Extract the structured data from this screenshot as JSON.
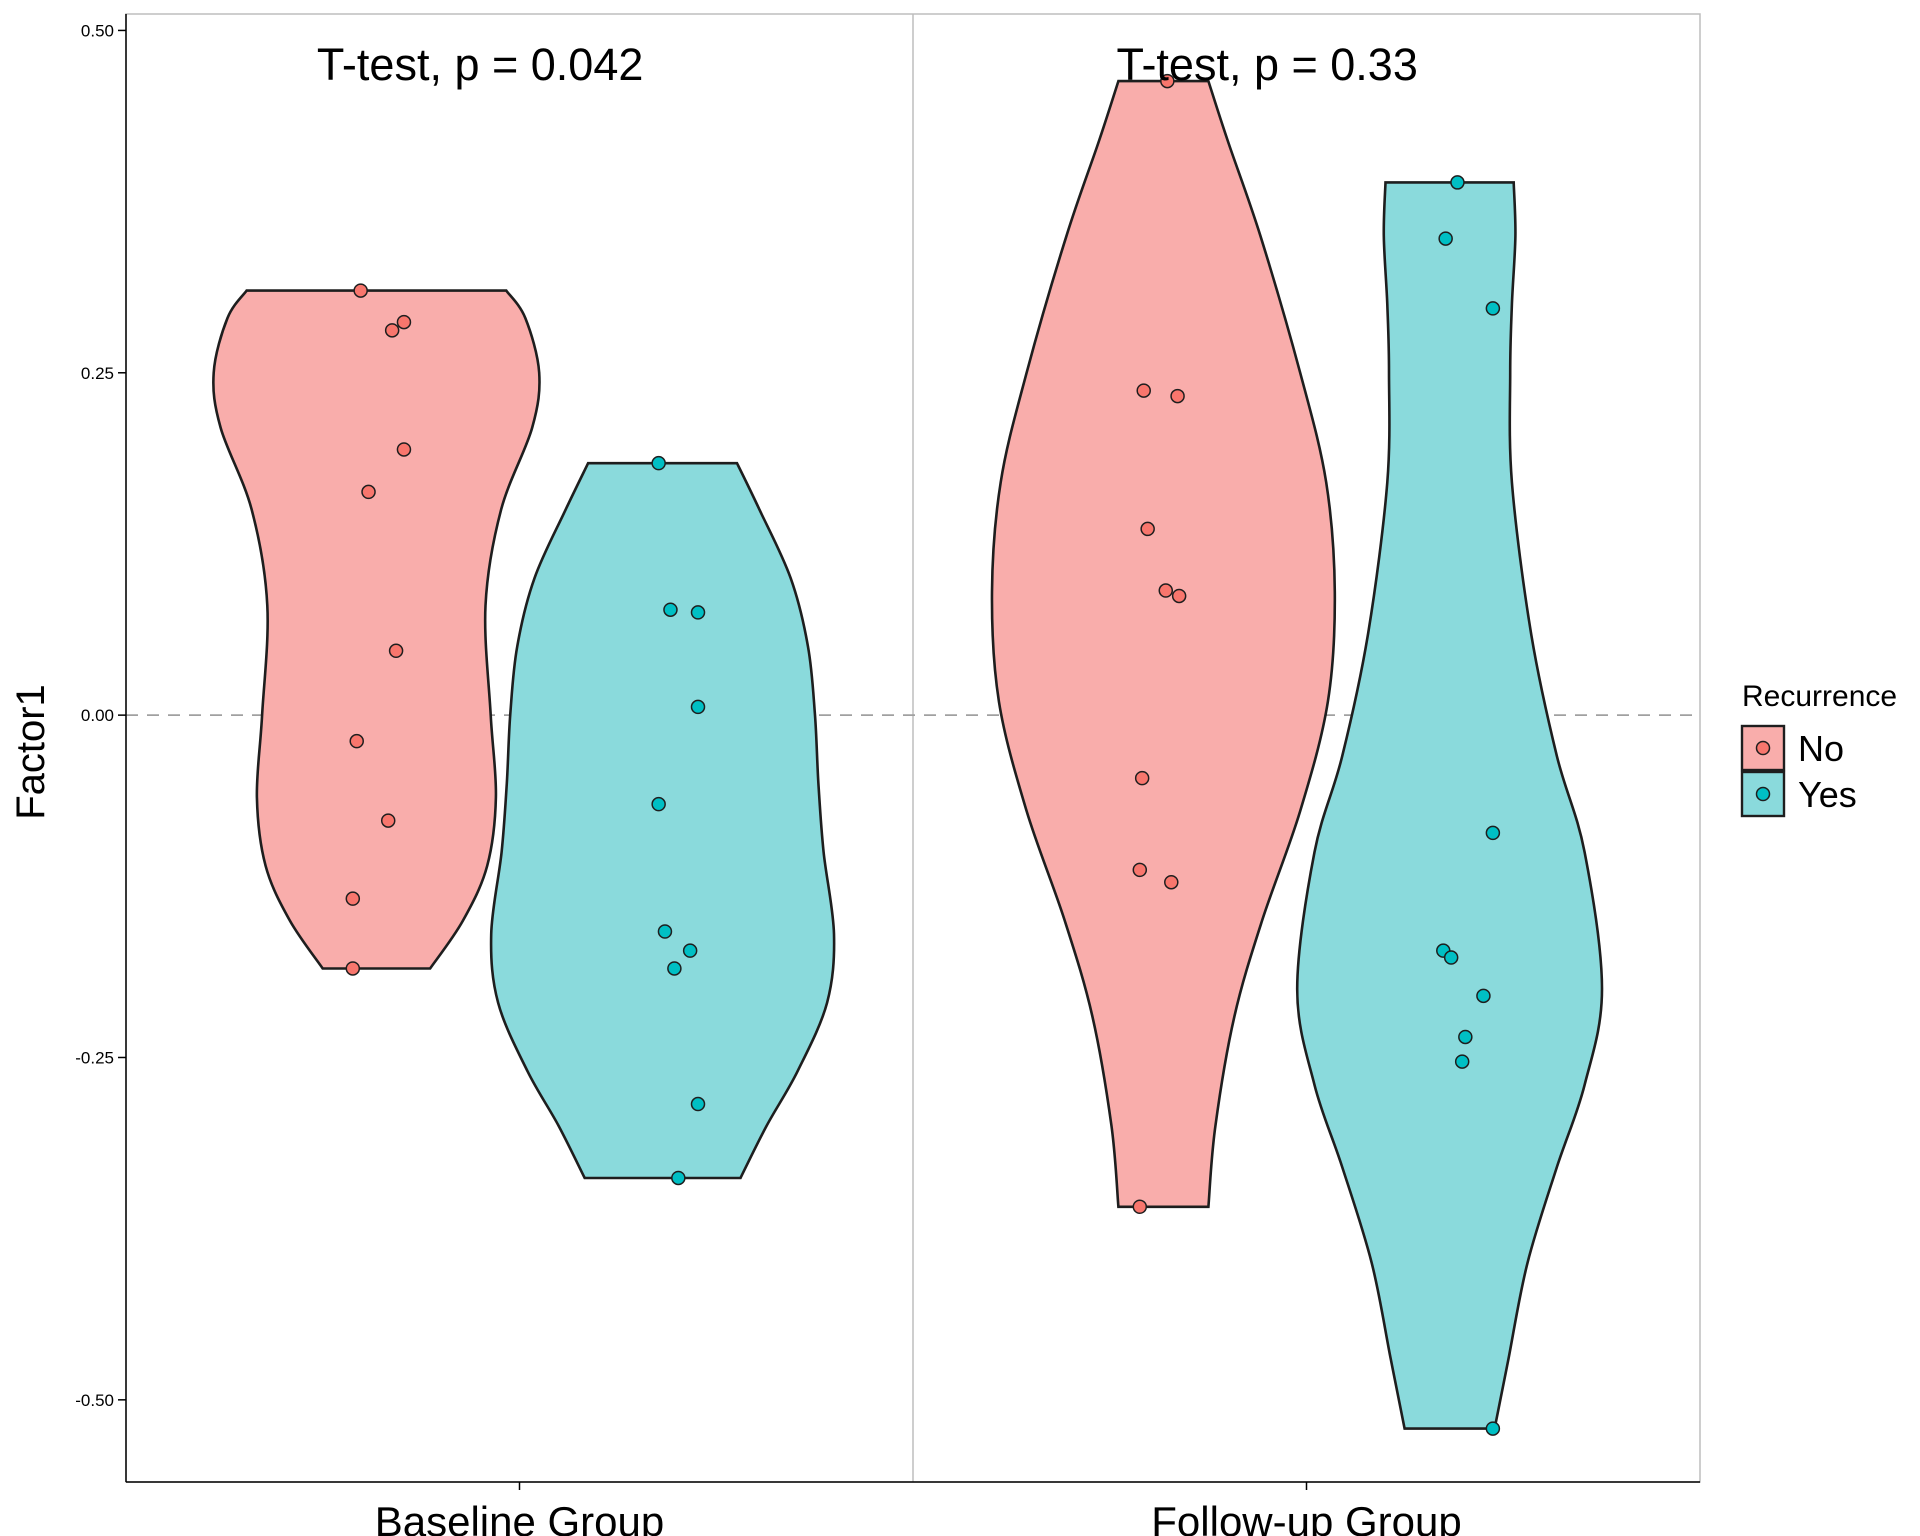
{
  "chart_data": {
    "type": "violin",
    "ylabel": "Factor1",
    "xlabel": "",
    "ylim": [
      -0.56,
      0.512
    ],
    "yticks": [
      -0.5,
      -0.25,
      0.0,
      0.25,
      0.5
    ],
    "ytick_labels": [
      "-0.50",
      "-0.25",
      "0.00",
      "0.25",
      "0.50"
    ],
    "reference_line": 0.0,
    "grid": false,
    "legend": {
      "title": "Recurrence",
      "placement": "right",
      "entries": [
        {
          "label": "No",
          "fill": "#F8766D"
        },
        {
          "label": "Yes",
          "fill": "#00BFC4"
        }
      ]
    },
    "panels": [
      {
        "category": "Baseline Group",
        "annotation": "T-test, p = 0.042",
        "groups": [
          {
            "name": "No",
            "color": "#F8766D",
            "points": [
              {
                "offset": -0.02,
                "y": 0.31
              },
              {
                "offset": 0.02,
                "y": 0.281
              },
              {
                "offset": 0.035,
                "y": 0.287
              },
              {
                "offset": 0.035,
                "y": 0.194
              },
              {
                "offset": -0.01,
                "y": 0.163
              },
              {
                "offset": 0.025,
                "y": 0.047
              },
              {
                "offset": -0.025,
                "y": -0.019
              },
              {
                "offset": 0.015,
                "y": -0.077
              },
              {
                "offset": -0.03,
                "y": -0.134
              },
              {
                "offset": -0.03,
                "y": -0.185
              }
            ],
            "density": [
              {
                "y": 0.31,
                "w": 0.75
              },
              {
                "y": 0.29,
                "w": 0.86
              },
              {
                "y": 0.25,
                "w": 0.94
              },
              {
                "y": 0.21,
                "w": 0.9
              },
              {
                "y": 0.15,
                "w": 0.72
              },
              {
                "y": 0.08,
                "w": 0.63
              },
              {
                "y": 0.0,
                "w": 0.66
              },
              {
                "y": -0.06,
                "w": 0.69
              },
              {
                "y": -0.11,
                "w": 0.64
              },
              {
                "y": -0.15,
                "w": 0.5
              },
              {
                "y": -0.185,
                "w": 0.31
              }
            ]
          },
          {
            "name": "Yes",
            "color": "#00BFC4",
            "points": [
              {
                "offset": -0.005,
                "y": 0.184
              },
              {
                "offset": 0.01,
                "y": 0.077
              },
              {
                "offset": 0.045,
                "y": 0.075
              },
              {
                "offset": 0.045,
                "y": 0.006
              },
              {
                "offset": -0.005,
                "y": -0.065
              },
              {
                "offset": 0.003,
                "y": -0.158
              },
              {
                "offset": 0.035,
                "y": -0.172
              },
              {
                "offset": 0.015,
                "y": -0.185
              },
              {
                "offset": 0.045,
                "y": -0.284
              },
              {
                "offset": 0.02,
                "y": -0.338
              }
            ],
            "density": [
              {
                "y": 0.184,
                "w": 0.43
              },
              {
                "y": 0.15,
                "w": 0.56
              },
              {
                "y": 0.1,
                "w": 0.74
              },
              {
                "y": 0.05,
                "w": 0.84
              },
              {
                "y": 0.0,
                "w": 0.88
              },
              {
                "y": -0.05,
                "w": 0.9
              },
              {
                "y": -0.1,
                "w": 0.93
              },
              {
                "y": -0.16,
                "w": 0.99
              },
              {
                "y": -0.21,
                "w": 0.95
              },
              {
                "y": -0.26,
                "w": 0.78
              },
              {
                "y": -0.3,
                "w": 0.6
              },
              {
                "y": -0.338,
                "w": 0.45
              }
            ]
          }
        ]
      },
      {
        "category": "Follow-up Group",
        "annotation": "T-test, p = 0.33",
        "groups": [
          {
            "name": "No",
            "color": "#F8766D",
            "points": [
              {
                "offset": 0.005,
                "y": 0.463
              },
              {
                "offset": -0.025,
                "y": 0.237
              },
              {
                "offset": 0.018,
                "y": 0.233
              },
              {
                "offset": -0.02,
                "y": 0.136
              },
              {
                "offset": 0.003,
                "y": 0.091
              },
              {
                "offset": 0.02,
                "y": 0.087
              },
              {
                "offset": -0.027,
                "y": -0.046
              },
              {
                "offset": -0.03,
                "y": -0.113
              },
              {
                "offset": 0.01,
                "y": -0.122
              },
              {
                "offset": -0.03,
                "y": -0.359
              }
            ],
            "density": [
              {
                "y": 0.463,
                "w": 0.26
              },
              {
                "y": 0.42,
                "w": 0.37
              },
              {
                "y": 0.35,
                "w": 0.56
              },
              {
                "y": 0.25,
                "w": 0.79
              },
              {
                "y": 0.17,
                "w": 0.94
              },
              {
                "y": 0.09,
                "w": 0.99
              },
              {
                "y": 0.01,
                "w": 0.95
              },
              {
                "y": -0.07,
                "w": 0.79
              },
              {
                "y": -0.15,
                "w": 0.57
              },
              {
                "y": -0.22,
                "w": 0.41
              },
              {
                "y": -0.3,
                "w": 0.3
              },
              {
                "y": -0.359,
                "w": 0.26
              }
            ]
          },
          {
            "name": "Yes",
            "color": "#00BFC4",
            "points": [
              {
                "offset": 0.01,
                "y": 0.389
              },
              {
                "offset": -0.005,
                "y": 0.348
              },
              {
                "offset": 0.055,
                "y": 0.297
              },
              {
                "offset": 0.055,
                "y": -0.086
              },
              {
                "offset": -0.008,
                "y": -0.172
              },
              {
                "offset": 0.002,
                "y": -0.177
              },
              {
                "offset": 0.043,
                "y": -0.205
              },
              {
                "offset": 0.02,
                "y": -0.235
              },
              {
                "offset": 0.016,
                "y": -0.253
              },
              {
                "offset": 0.055,
                "y": -0.521
              }
            ],
            "density": [
              {
                "y": 0.389,
                "w": 0.37
              },
              {
                "y": 0.35,
                "w": 0.38
              },
              {
                "y": 0.3,
                "w": 0.36
              },
              {
                "y": 0.25,
                "w": 0.35
              },
              {
                "y": 0.17,
                "w": 0.36
              },
              {
                "y": 0.06,
                "w": 0.47
              },
              {
                "y": -0.03,
                "w": 0.62
              },
              {
                "y": -0.1,
                "w": 0.78
              },
              {
                "y": -0.2,
                "w": 0.88
              },
              {
                "y": -0.27,
                "w": 0.78
              },
              {
                "y": -0.33,
                "w": 0.62
              },
              {
                "y": -0.4,
                "w": 0.45
              },
              {
                "y": -0.47,
                "w": 0.34
              },
              {
                "y": -0.521,
                "w": 0.26
              }
            ]
          }
        ]
      }
    ]
  }
}
